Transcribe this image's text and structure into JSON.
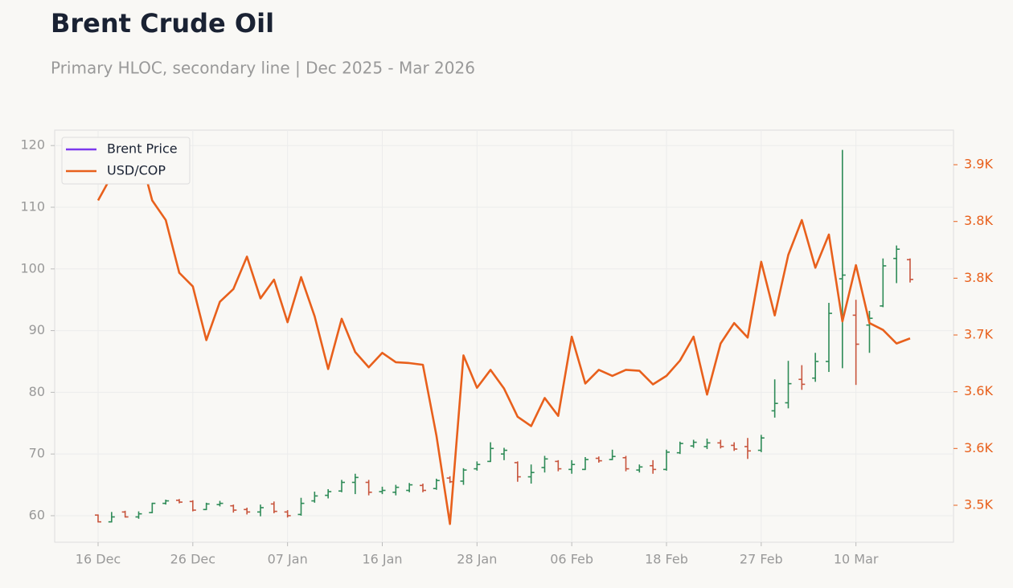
{
  "chart_data": {
    "type": "ohlc",
    "title": "Brent Crude Oil",
    "subtitle": "Primary HLOC, secondary line | Dec 2025 - Mar 2026",
    "categories": [
      "16 Dec",
      null,
      null,
      null,
      null,
      null,
      null,
      "26 Dec",
      null,
      null,
      null,
      null,
      null,
      null,
      "07 Jan",
      null,
      null,
      null,
      null,
      null,
      null,
      "16 Jan",
      null,
      null,
      null,
      null,
      null,
      null,
      "28 Jan",
      null,
      null,
      null,
      null,
      null,
      null,
      "06 Feb",
      null,
      null,
      null,
      null,
      null,
      null,
      "18 Feb",
      null,
      null,
      null,
      null,
      null,
      null,
      "27 Feb",
      null,
      null,
      null,
      null,
      null,
      null,
      "10 Mar",
      null,
      null,
      null,
      null
    ],
    "ylim": [
      55.7,
      122.5
    ],
    "yticks": [
      60,
      70,
      80,
      90,
      100,
      110,
      120
    ],
    "y2lim": [
      3456.6,
      3940.6
    ],
    "y2ticks": [
      {
        "value": 3500,
        "label": "3.5K"
      },
      {
        "value": 3566.7,
        "label": "3.6K"
      },
      {
        "value": 3633.3,
        "label": "3.6K"
      },
      {
        "value": 3700,
        "label": "3.7K"
      },
      {
        "value": 3766.7,
        "label": "3.8K"
      },
      {
        "value": 3833.3,
        "label": "3.8K"
      },
      {
        "value": 3900,
        "label": "3.9K"
      }
    ],
    "grid": true,
    "legend": "upper-left",
    "series": [
      {
        "name": "Brent Price",
        "type": "ohlc",
        "color": "#7c3aed",
        "up_color": "#2e8b57",
        "down_color": "#c8553d",
        "open": [
          60.1,
          59.0,
          60.6,
          59.8,
          60.5,
          62.0,
          62.5,
          62.3,
          61.0,
          61.8,
          61.6,
          61.0,
          60.6,
          61.9,
          60.6,
          60.2,
          62.4,
          63.3,
          64.0,
          65.4,
          65.4,
          63.9,
          63.8,
          64.1,
          64.9,
          64.4,
          66.1,
          65.6,
          67.6,
          68.8,
          70.0,
          68.6,
          66.3,
          67.8,
          68.8,
          67.5,
          67.5,
          69.3,
          69.1,
          69.4,
          67.4,
          68.1,
          67.5,
          70.2,
          71.3,
          71.2,
          71.8,
          71.4,
          71.2,
          70.6,
          77.0,
          78.3,
          82.1,
          82.3,
          85.0,
          98.4,
          92.5,
          90.9,
          94.0,
          101.7,
          101.5
        ],
        "high": [
          60.2,
          60.6,
          60.8,
          60.7,
          62.1,
          62.6,
          62.7,
          62.5,
          62.1,
          62.4,
          61.8,
          61.3,
          61.8,
          62.3,
          60.9,
          62.9,
          63.9,
          64.3,
          65.8,
          66.8,
          65.8,
          64.7,
          65.0,
          65.3,
          65.2,
          66.0,
          66.4,
          67.7,
          68.8,
          71.9,
          71.0,
          68.8,
          68.3,
          69.7,
          69.0,
          69.0,
          69.5,
          69.6,
          70.7,
          69.7,
          68.3,
          69.0,
          70.7,
          72.0,
          72.3,
          72.5,
          72.3,
          71.9,
          72.6,
          73.1,
          82.1,
          85.1,
          84.4,
          86.4,
          94.5,
          119.3,
          95.0,
          93.2,
          101.7,
          103.8,
          101.7
        ],
        "low": [
          58.9,
          58.9,
          59.7,
          59.5,
          60.4,
          61.8,
          62.0,
          60.7,
          60.9,
          61.5,
          60.5,
          60.2,
          59.9,
          60.4,
          59.7,
          60.0,
          62.1,
          62.8,
          63.8,
          63.5,
          63.3,
          63.5,
          63.3,
          63.8,
          63.8,
          64.2,
          65.3,
          65.0,
          67.3,
          68.7,
          69.0,
          65.5,
          65.2,
          67.0,
          67.2,
          66.8,
          67.4,
          68.6,
          69.0,
          67.2,
          67.0,
          66.8,
          67.3,
          70.0,
          71.0,
          70.8,
          70.9,
          70.5,
          69.2,
          70.3,
          75.9,
          77.4,
          80.4,
          81.7,
          83.3,
          83.9,
          81.2,
          86.4,
          93.8,
          97.7,
          97.8
        ],
        "close": [
          59.0,
          59.8,
          59.8,
          60.3,
          62.0,
          62.4,
          62.2,
          60.9,
          61.9,
          62.0,
          60.9,
          60.6,
          61.3,
          60.7,
          60.0,
          62.0,
          63.2,
          63.9,
          65.4,
          66.2,
          63.8,
          64.1,
          64.6,
          65.0,
          64.1,
          65.7,
          65.5,
          67.4,
          68.3,
          70.9,
          70.6,
          66.3,
          67.0,
          69.2,
          67.6,
          68.3,
          69.1,
          68.9,
          69.6,
          67.6,
          67.9,
          67.5,
          70.3,
          71.7,
          71.9,
          71.8,
          71.2,
          70.8,
          70.5,
          72.6,
          78.2,
          81.4,
          81.3,
          85.0,
          92.8,
          99.0,
          87.8,
          92.0,
          100.5,
          103.2,
          98.3
        ]
      },
      {
        "name": "USD/COP",
        "type": "line",
        "axis": "y2",
        "color": "#e8601c",
        "values": [
          3858,
          3887,
          3919,
          3918,
          3858,
          3835,
          3773,
          3757,
          3694,
          3739,
          3754,
          3792,
          3743,
          3765,
          3715,
          3768,
          3722,
          3660,
          3719,
          3680,
          3662,
          3679,
          3668,
          3667,
          3665,
          3582,
          3478,
          3676,
          3638,
          3659,
          3637,
          3604,
          3593,
          3626,
          3605,
          3698,
          3643,
          3659,
          3652,
          3659,
          3658,
          3642,
          3652,
          3670,
          3698,
          3630,
          3690,
          3714,
          3697,
          3786,
          3723,
          3794,
          3835,
          3779,
          3818,
          3716,
          3782,
          3714,
          3706,
          3690,
          3696
        ]
      }
    ]
  }
}
